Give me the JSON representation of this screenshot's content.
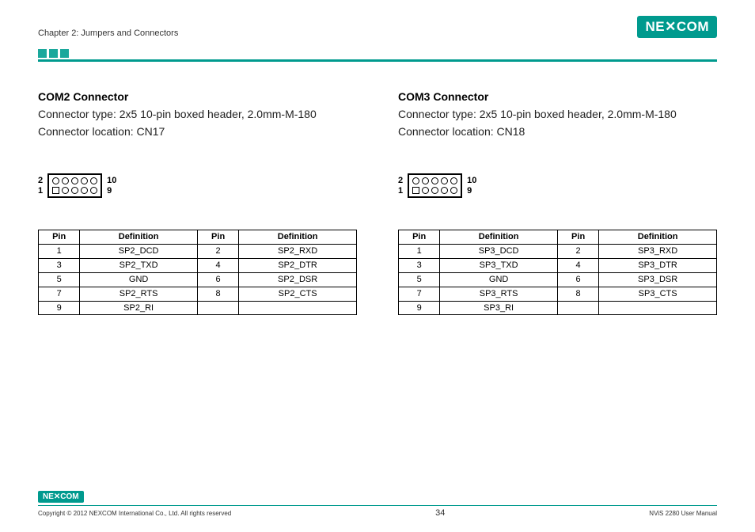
{
  "header": {
    "chapter": "Chapter 2: Jumpers and Connectors",
    "logo_text": "NE COM",
    "square_colors": [
      "#1aa89c",
      "#1aa89c",
      "#1aa89c"
    ],
    "rule_color": "#009a8e"
  },
  "connectors": [
    {
      "title": "COM2 Connector",
      "type_line": "Connector type: 2x5 10-pin boxed header, 2.0mm-M-180",
      "loc_line": "Connector location: CN17",
      "diagram": {
        "left_top": "2",
        "left_bot": "1",
        "right_top": "10",
        "right_bot": "9",
        "cols": 5
      },
      "columns": [
        "Pin",
        "Definition",
        "Pin",
        "Definition"
      ],
      "rows": [
        [
          "1",
          "SP2_DCD",
          "2",
          "SP2_RXD"
        ],
        [
          "3",
          "SP2_TXD",
          "4",
          "SP2_DTR"
        ],
        [
          "5",
          "GND",
          "6",
          "SP2_DSR"
        ],
        [
          "7",
          "SP2_RTS",
          "8",
          "SP2_CTS"
        ],
        [
          "9",
          "SP2_RI",
          "",
          ""
        ]
      ]
    },
    {
      "title": "COM3 Connector",
      "type_line": "Connector type: 2x5 10-pin boxed header, 2.0mm-M-180",
      "loc_line": "Connector location: CN18",
      "diagram": {
        "left_top": "2",
        "left_bot": "1",
        "right_top": "10",
        "right_bot": "9",
        "cols": 5
      },
      "columns": [
        "Pin",
        "Definition",
        "Pin",
        "Definition"
      ],
      "rows": [
        [
          "1",
          "SP3_DCD",
          "2",
          "SP3_RXD"
        ],
        [
          "3",
          "SP3_TXD",
          "4",
          "SP3_DTR"
        ],
        [
          "5",
          "GND",
          "6",
          "SP3_DSR"
        ],
        [
          "7",
          "SP3_RTS",
          "8",
          "SP3_CTS"
        ],
        [
          "9",
          "SP3_RI",
          "",
          ""
        ]
      ]
    }
  ],
  "footer": {
    "logo_text": "NE COM",
    "copyright": "Copyright © 2012 NEXCOM International Co., Ltd. All rights reserved",
    "page_num": "34",
    "manual": "NViS 2280 User Manual",
    "rule_color": "#009a8e"
  }
}
